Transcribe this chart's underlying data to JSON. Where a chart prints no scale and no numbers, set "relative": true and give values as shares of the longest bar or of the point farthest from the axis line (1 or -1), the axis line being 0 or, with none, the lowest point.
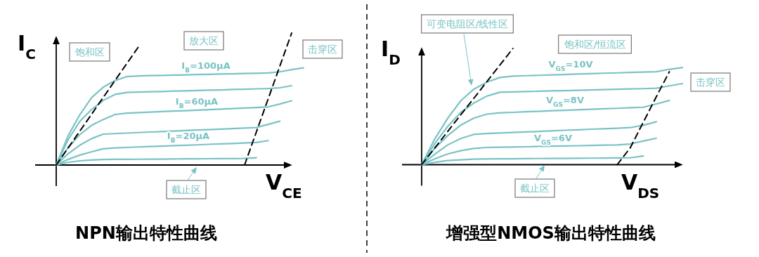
{
  "chart_data": [
    {
      "type": "line",
      "relative": true,
      "title": "NPN输出特性曲线",
      "xlabel": "V$_{CE}$",
      "ylabel": "I$_{C}$",
      "annotations": [
        "饱和区",
        "放大区",
        "击穿区",
        "截止区"
      ],
      "categories": [
        null,
        null,
        null,
        null,
        null,
        null,
        null,
        null,
        null,
        null,
        null,
        null,
        null,
        null,
        null,
        null,
        null,
        null,
        null,
        null,
        null,
        null
      ],
      "series": [
        {
          "name": "I$_{B}$=100μA",
          "color": "#7ac3c5",
          "values": [
            0,
            0.22,
            0.38,
            0.51,
            0.59,
            0.64,
            0.67,
            0.675,
            0.677,
            0.679,
            0.681,
            0.683,
            0.685,
            0.687,
            0.689,
            0.691,
            0.693,
            0.695,
            0.697,
            0.706,
            0.723,
            0.736
          ]
        },
        {
          "color": "#7ac3c5",
          "values": [
            0,
            0.19,
            0.33,
            0.42,
            0.49,
            0.535,
            0.55,
            0.552,
            0.555,
            0.557,
            0.56,
            0.562,
            0.564,
            0.567,
            0.569,
            0.572,
            0.574,
            0.577,
            0.579,
            0.585,
            0.601,
            null
          ]
        },
        {
          "name": "I$_{B}$=60μA",
          "color": "#7ac3c5",
          "values": [
            0,
            0.13,
            0.23,
            0.3,
            0.345,
            0.383,
            0.393,
            0.397,
            0.401,
            0.405,
            0.409,
            0.412,
            0.416,
            0.42,
            0.424,
            0.428,
            0.431,
            0.435,
            0.44,
            0.462,
            0.487,
            null
          ]
        },
        {
          "color": "#7ac3c5",
          "values": [
            0,
            0.085,
            0.15,
            0.2,
            0.234,
            0.238,
            0.242,
            0.246,
            0.25,
            0.253,
            0.257,
            0.261,
            0.265,
            0.268,
            0.272,
            0.276,
            0.28,
            0.284,
            0.308,
            0.332,
            null,
            null
          ]
        },
        {
          "name": "I$_{B}$=20μA",
          "color": "#7ac3c5",
          "values": [
            0,
            0.042,
            0.075,
            0.1,
            0.123,
            0.13,
            0.133,
            0.137,
            0.14,
            0.143,
            0.147,
            0.15,
            0.153,
            0.157,
            0.16,
            0.163,
            0.167,
            0.171,
            0.185,
            null,
            null,
            null
          ]
        },
        {
          "color": "#7ac3c5",
          "values": [
            0,
            0.02,
            0.032,
            0.038,
            0.042,
            0.043,
            0.043,
            0.044,
            0.045,
            0.045,
            0.046,
            0.047,
            0.047,
            0.048,
            0.049,
            0.049,
            0.05,
            0.055,
            null,
            null,
            null,
            null
          ]
        },
        {
          "color": "#000000",
          "line_style": "dashed",
          "values": [
            0,
            0.128,
            0.256,
            0.384,
            0.513,
            0.641,
            0.769,
            0.897,
            null,
            null,
            null,
            null,
            null,
            null,
            null,
            null,
            null,
            null,
            null,
            null,
            null,
            null
          ]
        },
        {
          "color": "#000000",
          "line_style": "dashed",
          "values": [
            null,
            null,
            null,
            null,
            null,
            null,
            null,
            null,
            null,
            null,
            null,
            null,
            null,
            null,
            null,
            null,
            0,
            0.25,
            0.5,
            0.75,
            1,
            null
          ]
        }
      ]
    },
    {
      "type": "line",
      "relative": true,
      "title": "增强型NMOS输出特性曲线",
      "xlabel": "V$_{DS}$",
      "ylabel": "I$_{D}$",
      "annotations": [
        "可变电阻区/线性区",
        "饱和区/恒流区",
        "击穿区",
        "截止区"
      ],
      "categories": [
        null,
        null,
        null,
        null,
        null,
        null,
        null,
        null,
        null,
        null,
        null,
        null,
        null,
        null,
        null,
        null,
        null,
        null,
        null,
        null,
        null,
        null
      ],
      "series": [
        {
          "name": "V$_{GS}$=10V",
          "color": "#7ac3c5",
          "values": [
            0,
            0.22,
            0.4,
            0.55,
            0.65,
            0.71,
            0.75,
            0.762,
            0.766,
            0.769,
            0.773,
            0.776,
            0.78,
            0.783,
            0.787,
            0.79,
            0.794,
            0.797,
            0.8,
            0.82,
            0.836,
            null
          ]
        },
        {
          "color": "#7ac3c5",
          "values": [
            0,
            0.18,
            0.33,
            0.45,
            0.53,
            0.59,
            0.623,
            0.626,
            0.629,
            0.632,
            0.635,
            0.637,
            0.64,
            0.643,
            0.646,
            0.649,
            0.652,
            0.654,
            0.658,
            0.678,
            0.698,
            null
          ]
        },
        {
          "name": "V$_{GS}$=8V",
          "color": "#7ac3c5",
          "values": [
            0,
            0.14,
            0.25,
            0.34,
            0.4,
            0.435,
            0.446,
            0.45,
            0.455,
            0.459,
            0.464,
            0.468,
            0.472,
            0.477,
            0.481,
            0.485,
            0.49,
            0.494,
            0.523,
            0.552,
            null,
            null
          ]
        },
        {
          "color": "#7ac3c5",
          "values": [
            0,
            0.09,
            0.17,
            0.225,
            0.26,
            0.268,
            0.273,
            0.277,
            0.282,
            0.286,
            0.291,
            0.296,
            0.3,
            0.305,
            0.309,
            0.314,
            0.319,
            0.339,
            0.369,
            null,
            null,
            null
          ]
        },
        {
          "name": "V$_{GS}$=6V",
          "color": "#7ac3c5",
          "values": [
            0,
            0.05,
            0.092,
            0.12,
            0.14,
            0.148,
            0.15,
            0.152,
            0.154,
            0.157,
            0.159,
            0.161,
            0.163,
            0.165,
            0.168,
            0.17,
            0.178,
            0.203,
            0.228,
            null,
            null,
            null
          ]
        },
        {
          "color": "#7ac3c5",
          "values": [
            0,
            0.02,
            0.035,
            0.042,
            0.048,
            0.049,
            0.05,
            0.051,
            0.052,
            0.053,
            0.054,
            0.054,
            0.055,
            0.056,
            0.057,
            0.058,
            0.059,
            0.075,
            null,
            null,
            null,
            null
          ]
        },
        {
          "color": "#000000",
          "line_style": "dashed",
          "values": [
            0,
            0.143,
            0.286,
            0.429,
            0.571,
            0.714,
            0.857,
            1,
            null,
            null,
            null,
            null,
            null,
            null,
            null,
            null,
            null,
            null,
            null,
            null,
            null,
            null
          ]
        },
        {
          "color": "#000000",
          "line_style": "dashed",
          "values": [
            null,
            null,
            null,
            null,
            null,
            null,
            null,
            null,
            null,
            null,
            null,
            null,
            null,
            null,
            null,
            0,
            0.145,
            0.365,
            0.585,
            0.8,
            null,
            null
          ]
        }
      ]
    }
  ]
}
